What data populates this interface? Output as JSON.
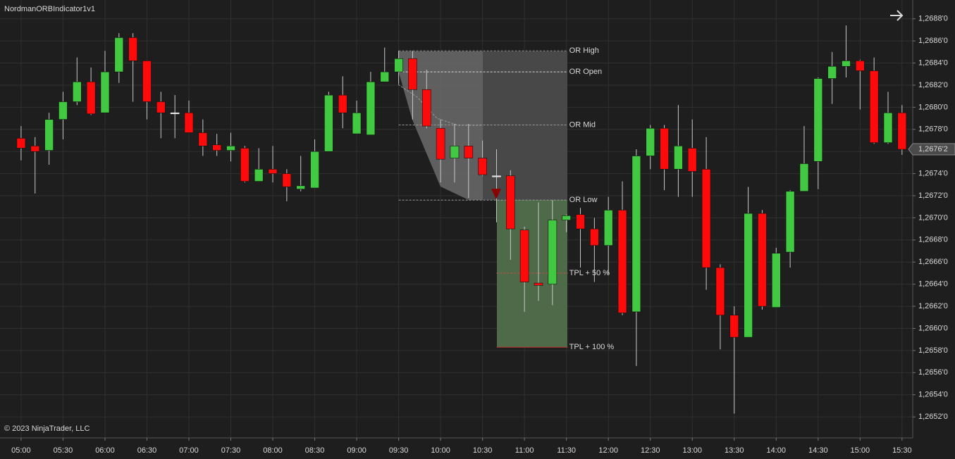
{
  "chart_data": {
    "type": "candlestick",
    "title": "NordmanORBIndicator1v1",
    "annotations": [
      "© 2023 NinjaTrader, LLC"
    ],
    "categories": [
      "05:00",
      null,
      null,
      "05:30",
      null,
      null,
      "06:00",
      null,
      null,
      "06:30",
      null,
      null,
      "07:00",
      null,
      null,
      "07:30",
      null,
      null,
      "08:00",
      null,
      null,
      "08:30",
      null,
      null,
      "09:00",
      null,
      null,
      "09:30",
      null,
      null,
      "10:00",
      null,
      null,
      "10:30",
      null,
      null,
      "11:00",
      null,
      null,
      "11:30",
      null,
      null,
      "12:00",
      null,
      null,
      "12:30",
      null,
      null,
      "13:00",
      null,
      null,
      "13:30",
      null,
      null,
      "14:00",
      null,
      null,
      "14:30",
      null,
      null,
      "15:00",
      null,
      null,
      "15:30"
    ],
    "open": [
      1.26772,
      1.26765,
      1.26761,
      1.26789,
      1.26805,
      1.26823,
      1.26795,
      1.26832,
      1.26863,
      1.26842,
      1.26805,
      1.26795,
      1.26795,
      1.26777,
      1.26766,
      1.26761,
      1.26763,
      1.26733,
      1.26744,
      1.2674,
      1.26726,
      1.26727,
      1.2676,
      1.26811,
      1.26776,
      1.26775,
      1.26823,
      1.26832,
      1.26844,
      1.26816,
      1.26781,
      1.26754,
      1.26765,
      1.26754,
      1.26738,
      1.26738,
      1.26689,
      1.26641,
      1.2664,
      1.26698,
      1.26703,
      1.2669,
      1.26675,
      1.26707,
      1.26615,
      1.26756,
      1.26781,
      1.26744,
      1.26763,
      1.26744,
      1.26655,
      1.26612,
      1.26592,
      1.26704,
      1.26619,
      1.26669,
      1.26724,
      1.26751,
      1.26826,
      1.26837,
      1.26842,
      1.26833,
      1.26768,
      1.26795
    ],
    "high": [
      1.26783,
      1.26773,
      1.26795,
      1.26814,
      1.26845,
      1.26836,
      1.26851,
      1.26867,
      1.26867,
      1.26842,
      1.26814,
      1.26811,
      1.26806,
      1.26789,
      1.26776,
      1.26777,
      1.26765,
      1.26763,
      1.26765,
      1.26744,
      1.26756,
      1.26771,
      1.26814,
      1.26828,
      1.26806,
      1.26832,
      1.26854,
      1.26851,
      1.26851,
      1.26834,
      1.26789,
      1.26785,
      1.26785,
      1.2677,
      1.26762,
      1.26743,
      1.26692,
      1.26714,
      1.26716,
      1.26703,
      1.26709,
      1.267,
      1.26719,
      1.26733,
      1.26762,
      1.26784,
      1.26784,
      1.26802,
      1.26789,
      1.26773,
      1.26658,
      1.2662,
      1.26728,
      1.26707,
      1.26673,
      1.26725,
      1.26783,
      1.26827,
      1.2685,
      1.26874,
      1.26843,
      1.26845,
      1.26814,
      1.26802
    ],
    "low": [
      1.26752,
      1.26722,
      1.26748,
      1.26771,
      1.26802,
      1.26793,
      1.26795,
      1.26822,
      1.26805,
      1.26789,
      1.26772,
      1.26772,
      1.26777,
      1.26756,
      1.26756,
      1.26751,
      1.26732,
      1.26733,
      1.26732,
      1.26715,
      1.26724,
      1.26727,
      1.2676,
      1.26781,
      1.26776,
      1.26775,
      1.26823,
      1.26821,
      1.26789,
      1.26781,
      1.26732,
      1.26732,
      1.26718,
      1.26738,
      1.26696,
      1.26662,
      1.26615,
      1.26625,
      1.26621,
      1.26687,
      1.26655,
      1.26642,
      1.26649,
      1.26612,
      1.26566,
      1.26744,
      1.26725,
      1.26719,
      1.26719,
      1.26635,
      1.26581,
      1.26523,
      1.26592,
      1.26617,
      1.26619,
      1.26655,
      1.26724,
      1.26726,
      1.26803,
      1.26827,
      1.26798,
      1.26767,
      1.26767,
      1.26757
    ],
    "close": [
      1.26763,
      1.2676,
      1.26789,
      1.26805,
      1.26823,
      1.26794,
      1.26832,
      1.26863,
      1.26842,
      1.26805,
      1.26795,
      1.26795,
      1.26777,
      1.26765,
      1.26761,
      1.26765,
      1.26733,
      1.26744,
      1.2674,
      1.26728,
      1.26729,
      1.2676,
      1.26811,
      1.26795,
      1.26795,
      1.26823,
      1.26832,
      1.26844,
      1.26816,
      1.26783,
      1.26753,
      1.26765,
      1.26754,
      1.26739,
      1.26738,
      1.2669,
      1.26642,
      1.26639,
      1.26698,
      1.26702,
      1.2669,
      1.26675,
      1.26707,
      1.26614,
      1.26756,
      1.26781,
      1.26744,
      1.26765,
      1.26742,
      1.26655,
      1.26612,
      1.26592,
      1.26704,
      1.2662,
      1.26668,
      1.26724,
      1.26749,
      1.26826,
      1.26837,
      1.26842,
      1.26833,
      1.26768,
      1.26795,
      1.26762
    ],
    "up_color": "#41c941",
    "down_color": "#ff0a0a",
    "doji_color": "#e8e8e8",
    "wick_color": "#c8c8c8",
    "ylim": [
      1.26501,
      1.26897
    ],
    "yticks": [
      {
        "value": 1.2652,
        "label": "1,2652'0"
      },
      {
        "value": 1.2654,
        "label": "1,2654'0"
      },
      {
        "value": 1.2656,
        "label": "1,2656'0"
      },
      {
        "value": 1.2658,
        "label": "1,2658'0"
      },
      {
        "value": 1.266,
        "label": "1,2660'0"
      },
      {
        "value": 1.2662,
        "label": "1,2662'0"
      },
      {
        "value": 1.2664,
        "label": "1,2664'0"
      },
      {
        "value": 1.2666,
        "label": "1,2666'0"
      },
      {
        "value": 1.2668,
        "label": "1,2668'0"
      },
      {
        "value": 1.267,
        "label": "1,2670'0"
      },
      {
        "value": 1.2672,
        "label": "1,2672'0"
      },
      {
        "value": 1.2674,
        "label": "1,2674'0"
      },
      {
        "value": 1.2676,
        "label": "1,2676'0"
      },
      {
        "value": 1.2678,
        "label": "1,2678'0"
      },
      {
        "value": 1.268,
        "label": "1,2680'0"
      },
      {
        "value": 1.2682,
        "label": "1,2682'0"
      },
      {
        "value": 1.2684,
        "label": "1,2684'0"
      },
      {
        "value": 1.2686,
        "label": "1,2686'0"
      },
      {
        "value": 1.2688,
        "label": "1,2688'0"
      }
    ],
    "last_price": {
      "value": 1.26762,
      "label": "1,2676'2"
    },
    "grid": true,
    "levels": [
      {
        "label": "OR High",
        "value": 1.26851,
        "color": "#9a9a9a"
      },
      {
        "label": "OR Open",
        "value": 1.26832,
        "color": "#d8d8d8"
      },
      {
        "label": "OR Mid",
        "value": 1.26784,
        "color": "#9a9a9a"
      },
      {
        "label": "OR Low",
        "value": 1.26716,
        "color": "#9a9a9a"
      },
      {
        "label": "TPL + 50 %",
        "value": 1.2665,
        "color": "#c0504d"
      },
      {
        "label": "TPL + 100 %",
        "value": 1.26583,
        "color": "#c0302d"
      }
    ]
  }
}
